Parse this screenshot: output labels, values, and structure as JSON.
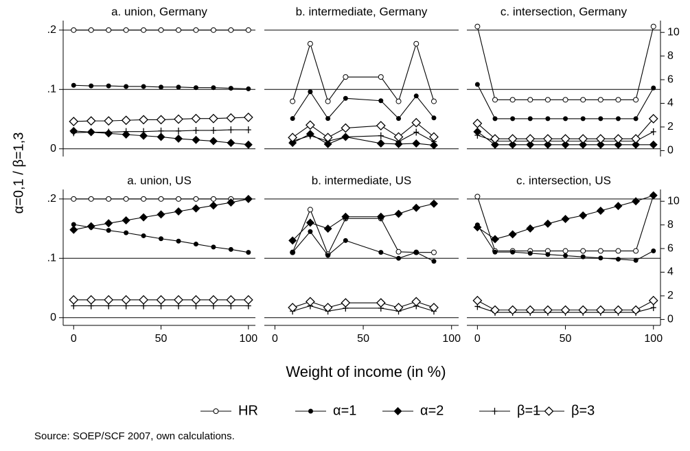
{
  "figure": {
    "ylabel": "α=0,1 / β=1,3",
    "xlabel": "Weight of income (in %)",
    "source": "Source: SOEP/SCF 2007, own calculations.",
    "legend": [
      {
        "name": "HR",
        "marker": "open-circle"
      },
      {
        "name": "α=1",
        "marker": "filled-circle"
      },
      {
        "name": "α=2",
        "marker": "filled-diamond"
      },
      {
        "name": "β=1",
        "marker": "plus"
      },
      {
        "name": "β=3",
        "marker": "open-diamond"
      }
    ]
  },
  "chart_data": [
    {
      "type": "line",
      "title": "a. union, Germany",
      "x": [
        0,
        10,
        20,
        30,
        40,
        50,
        60,
        70,
        80,
        90,
        100
      ],
      "xlim": [
        -6,
        104
      ],
      "ylim": [
        -0.013,
        0.216
      ],
      "yticks": [
        0,
        {
          "value": 0.1,
          "label": ".1"
        },
        {
          "value": 0.2,
          "label": ".2"
        }
      ],
      "series": [
        {
          "values": [
            0.2,
            0.2,
            0.2,
            0.2,
            0.2,
            0.2,
            0.2,
            0.2,
            0.2,
            0.2,
            0.2
          ]
        },
        {
          "values": [
            0.107,
            0.106,
            0.106,
            0.105,
            0.105,
            0.104,
            0.104,
            0.103,
            0.103,
            0.102,
            0.101
          ]
        },
        {
          "values": [
            0.03,
            0.028,
            0.026,
            0.024,
            0.022,
            0.02,
            0.017,
            0.015,
            0.013,
            0.01,
            0.007
          ]
        },
        {
          "values": [
            0.027,
            0.028,
            0.028,
            0.029,
            0.029,
            0.03,
            0.03,
            0.031,
            0.031,
            0.032,
            0.032
          ]
        },
        {
          "values": [
            0.046,
            0.047,
            0.047,
            0.048,
            0.049,
            0.049,
            0.05,
            0.051,
            0.051,
            0.052,
            0.053
          ]
        }
      ]
    },
    {
      "type": "line",
      "title": "b. intermediate, Germany",
      "x": [
        10,
        20,
        30,
        40,
        60,
        70,
        80,
        90
      ],
      "xlim": [
        -6,
        104
      ],
      "ylim": [
        -0.013,
        0.216
      ],
      "yticks": [
        0,
        {
          "value": 0.1,
          "label": ".1"
        },
        {
          "value": 0.2,
          "label": ".2"
        }
      ],
      "series": [
        {
          "values": [
            0.08,
            0.177,
            0.08,
            0.121,
            0.121,
            0.08,
            0.177,
            0.08
          ]
        },
        {
          "values": [
            0.051,
            0.096,
            0.051,
            0.085,
            0.081,
            0.051,
            0.089,
            0.052
          ]
        },
        {
          "values": [
            0.01,
            0.025,
            0.008,
            0.02,
            0.009,
            0.008,
            0.009,
            0.006
          ]
        },
        {
          "values": [
            0.013,
            0.022,
            0.013,
            0.02,
            0.022,
            0.012,
            0.028,
            0.012
          ]
        },
        {
          "values": [
            0.019,
            0.04,
            0.019,
            0.035,
            0.039,
            0.02,
            0.044,
            0.02
          ]
        }
      ]
    },
    {
      "type": "line",
      "title": "c. intersection, Germany",
      "x": [
        0,
        10,
        20,
        30,
        40,
        50,
        60,
        70,
        80,
        90,
        100
      ],
      "xlim": [
        -6,
        104
      ],
      "ylim": [
        -0.013,
        0.216
      ],
      "yticks": [
        0,
        {
          "value": 0.1,
          "label": ".1"
        },
        {
          "value": 0.2,
          "label": ".2"
        }
      ],
      "y2lim": [
        -0.5,
        11
      ],
      "y2ticks": [
        0,
        2,
        4,
        6,
        8,
        10
      ],
      "series": [
        {
          "axis": "y2",
          "values": [
            10.5,
            4.3,
            4.3,
            4.3,
            4.3,
            4.3,
            4.3,
            4.3,
            4.3,
            4.3,
            10.5
          ]
        },
        {
          "axis": "y2",
          "values": [
            5.6,
            2.7,
            2.7,
            2.7,
            2.7,
            2.7,
            2.7,
            2.7,
            2.7,
            2.7,
            5.3
          ]
        },
        {
          "axis": "y2",
          "values": [
            1.6,
            0.5,
            0.5,
            0.5,
            0.5,
            0.5,
            0.5,
            0.5,
            0.5,
            0.5,
            0.5
          ]
        },
        {
          "axis": "y2",
          "values": [
            1.3,
            0.8,
            0.8,
            0.8,
            0.8,
            0.8,
            0.8,
            0.8,
            0.8,
            0.8,
            1.6
          ]
        },
        {
          "axis": "y2",
          "values": [
            2.3,
            1,
            1,
            1,
            1,
            1,
            1,
            1,
            1,
            1,
            2.7
          ]
        }
      ]
    },
    {
      "type": "line",
      "title": "a. union, US",
      "x": [
        0,
        10,
        20,
        30,
        40,
        50,
        60,
        70,
        80,
        90,
        100
      ],
      "xlim": [
        -6,
        104
      ],
      "xticks": [
        0,
        50,
        100
      ],
      "ylim": [
        -0.013,
        0.216
      ],
      "yticks": [
        0,
        {
          "value": 0.1,
          "label": ".1"
        },
        {
          "value": 0.2,
          "label": ".2"
        }
      ],
      "series": [
        {
          "values": [
            0.2,
            0.2,
            0.2,
            0.2,
            0.2,
            0.2,
            0.2,
            0.2,
            0.2,
            0.2,
            0.2
          ]
        },
        {
          "values": [
            0.157,
            0.152,
            0.147,
            0.143,
            0.138,
            0.133,
            0.129,
            0.124,
            0.119,
            0.115,
            0.11
          ]
        },
        {
          "values": [
            0.148,
            0.154,
            0.159,
            0.164,
            0.169,
            0.174,
            0.179,
            0.184,
            0.189,
            0.194,
            0.2
          ]
        },
        {
          "values": [
            0.02,
            0.02,
            0.02,
            0.02,
            0.02,
            0.02,
            0.02,
            0.02,
            0.02,
            0.02,
            0.02
          ]
        },
        {
          "values": [
            0.03,
            0.03,
            0.03,
            0.03,
            0.03,
            0.03,
            0.03,
            0.03,
            0.03,
            0.03,
            0.03
          ]
        }
      ]
    },
    {
      "type": "line",
      "title": "b. intermediate, US",
      "x": [
        10,
        20,
        30,
        40,
        60,
        70,
        80,
        90
      ],
      "xlim": [
        -6,
        104
      ],
      "xticks": [
        0,
        50,
        100
      ],
      "ylim": [
        -0.013,
        0.216
      ],
      "yticks": [
        0,
        {
          "value": 0.1,
          "label": ".1"
        },
        {
          "value": 0.2,
          "label": ".2"
        }
      ],
      "series": [
        {
          "values": [
            0.11,
            0.182,
            0.107,
            0.167,
            0.167,
            0.111,
            0.11,
            0.11
          ]
        },
        {
          "values": [
            0.11,
            0.145,
            0.105,
            0.13,
            0.11,
            0.1,
            0.11,
            0.095
          ]
        },
        {
          "values": [
            0.13,
            0.16,
            0.15,
            0.17,
            0.17,
            0.175,
            0.185,
            0.192
          ]
        },
        {
          "values": [
            0.011,
            0.02,
            0.011,
            0.016,
            0.016,
            0.011,
            0.02,
            0.011
          ]
        },
        {
          "values": [
            0.017,
            0.027,
            0.017,
            0.025,
            0.025,
            0.017,
            0.027,
            0.017
          ]
        }
      ]
    },
    {
      "type": "line",
      "title": "c. intersection, US",
      "x": [
        0,
        10,
        20,
        30,
        40,
        50,
        60,
        70,
        80,
        90,
        100
      ],
      "xlim": [
        -6,
        104
      ],
      "xticks": [
        0,
        50,
        100
      ],
      "ylim": [
        -0.013,
        0.216
      ],
      "yticks": [
        0,
        {
          "value": 0.1,
          "label": ".1"
        },
        {
          "value": 0.2,
          "label": ".2"
        }
      ],
      "y2lim": [
        -0.5,
        11
      ],
      "y2ticks": [
        0,
        2,
        4,
        6,
        8,
        10
      ],
      "series": [
        {
          "axis": "y2",
          "values": [
            10.4,
            5.8,
            5.8,
            5.8,
            5.8,
            5.8,
            5.8,
            5.8,
            5.8,
            5.8,
            10.5
          ]
        },
        {
          "axis": "y2",
          "values": [
            8,
            5.7,
            5.7,
            5.6,
            5.5,
            5.4,
            5.3,
            5.2,
            5.1,
            5,
            5.8
          ]
        },
        {
          "axis": "y2",
          "values": [
            7.8,
            6.8,
            7.2,
            7.7,
            8.1,
            8.5,
            8.8,
            9.2,
            9.6,
            10,
            10.5
          ]
        },
        {
          "axis": "y2",
          "values": [
            1.1,
            0.6,
            0.6,
            0.6,
            0.6,
            0.6,
            0.6,
            0.6,
            0.6,
            0.6,
            1
          ]
        },
        {
          "axis": "y2",
          "values": [
            1.6,
            0.8,
            0.8,
            0.8,
            0.8,
            0.8,
            0.8,
            0.8,
            0.8,
            0.8,
            1.6
          ]
        }
      ]
    }
  ]
}
